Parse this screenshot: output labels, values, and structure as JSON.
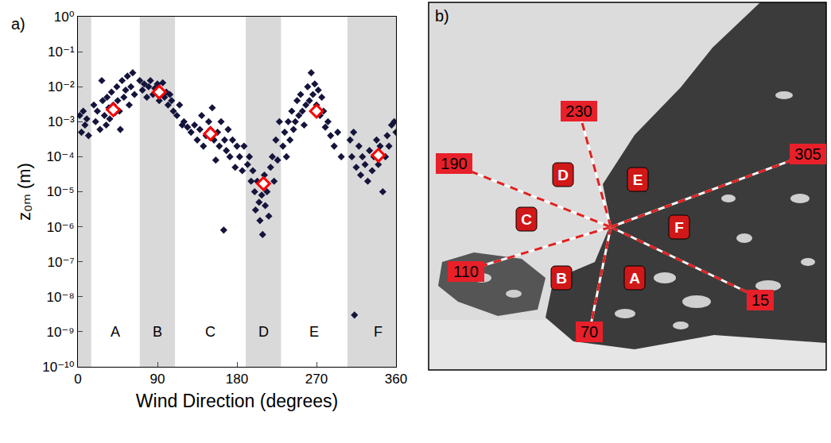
{
  "chart_data": {
    "type": "scatter",
    "panel_label": "a)",
    "x_label": "Wind Direction (degrees)",
    "y_label": "z₀ₘ (m)",
    "log": "y",
    "grid": false,
    "xlim": [
      0,
      360
    ],
    "xticks": [
      0,
      90,
      180,
      270,
      360
    ],
    "ylim": [
      1e-10,
      1
    ],
    "yticks": [
      {
        "value": 1e-10,
        "label": "10⁻¹⁰"
      },
      {
        "value": 1e-09,
        "label": "10⁻⁹"
      },
      {
        "value": 1e-08,
        "label": "10⁻⁸"
      },
      {
        "value": 1e-07,
        "label": "10⁻⁷"
      },
      {
        "value": 1e-06,
        "label": "10⁻⁶"
      },
      {
        "value": 1e-05,
        "label": "10⁻⁵"
      },
      {
        "value": 0.0001,
        "label": "10⁻⁴"
      },
      {
        "value": 0.001,
        "label": "10⁻³"
      },
      {
        "value": 0.01,
        "label": "10⁻²"
      },
      {
        "value": 0.1,
        "label": "10⁻¹"
      },
      {
        "value": 1,
        "label": "10⁰"
      }
    ],
    "sectors": [
      {
        "label": "A",
        "start": 15,
        "end": 70,
        "color": "#ffffff"
      },
      {
        "label": "B",
        "start": 70,
        "end": 110,
        "color": "#d9d9d9"
      },
      {
        "label": "C",
        "start": 110,
        "end": 190,
        "color": "#ffffff"
      },
      {
        "label": "D",
        "start": 190,
        "end": 230,
        "color": "#d9d9d9"
      },
      {
        "label": "E",
        "start": 230,
        "end": 305,
        "color": "#ffffff"
      },
      {
        "label": "F",
        "start": 305,
        "end": 15,
        "color": "#d9d9d9"
      }
    ],
    "series": [
      {
        "color": "#14143c",
        "marker": "diamond",
        "x": [
          2,
          4,
          6,
          8,
          10,
          12,
          18,
          20,
          22,
          25,
          27,
          28,
          30,
          32,
          33,
          35,
          36,
          38,
          40,
          42,
          44,
          45,
          47,
          48,
          50,
          52,
          54,
          56,
          58,
          60,
          62,
          64,
          70,
          73,
          75,
          78,
          80,
          82,
          85,
          87,
          90,
          92,
          94,
          96,
          98,
          100,
          102,
          104,
          106,
          108,
          112,
          115,
          118,
          120,
          124,
          128,
          132,
          135,
          138,
          140,
          142,
          145,
          148,
          150,
          152,
          154,
          156,
          158,
          160,
          162,
          165,
          166,
          168,
          170,
          172,
          175,
          178,
          180,
          183,
          186,
          188,
          192,
          194,
          196,
          198,
          200,
          201,
          203,
          205,
          206,
          208,
          209,
          211,
          212,
          214,
          216,
          218,
          220,
          222,
          224,
          226,
          228,
          232,
          234,
          236,
          238,
          240,
          242,
          244,
          246,
          248,
          250,
          252,
          254,
          256,
          258,
          260,
          262,
          264,
          266,
          268,
          270,
          272,
          274,
          276,
          278,
          280,
          283,
          286,
          290,
          294,
          298,
          308,
          310,
          312,
          313,
          315,
          318,
          320,
          322,
          325,
          328,
          330,
          333,
          335,
          338,
          340,
          342,
          345,
          348,
          350,
          352,
          355,
          358,
          360
        ],
        "values": [
          0.0015,
          0.0005,
          0.002,
          0.0008,
          0.0012,
          0.0004,
          0.003,
          0.001,
          0.002,
          0.0006,
          0.015,
          0.004,
          0.0015,
          0.0008,
          0.005,
          0.0025,
          0.0012,
          0.007,
          0.003,
          0.0018,
          0.01,
          0.004,
          0.002,
          0.0006,
          0.015,
          0.005,
          0.008,
          0.02,
          0.003,
          0.01,
          0.025,
          0.006,
          0.015,
          0.008,
          0.012,
          0.005,
          0.01,
          0.015,
          0.006,
          0.009,
          0.012,
          0.004,
          0.008,
          0.013,
          0.005,
          0.007,
          0.003,
          0.006,
          0.004,
          0.002,
          0.0015,
          0.003,
          0.0008,
          0.001,
          0.0007,
          0.0005,
          0.0008,
          0.0003,
          0.0006,
          0.0015,
          0.0002,
          0.0004,
          0.001,
          0.0006,
          0.0025,
          0.0003,
          8e-05,
          0.0005,
          0.0002,
          0.001,
          8e-07,
          0.0003,
          0.00015,
          0.0006,
          0.0001,
          0.0003,
          5e-05,
          0.0002,
          0.0001,
          4e-05,
          0.0002,
          6e-05,
          0.0001,
          2e-05,
          4e-05,
          1e-05,
          3e-06,
          2e-05,
          5e-06,
          1.5e-06,
          8e-06,
          6e-07,
          3e-05,
          4e-06,
          1e-05,
          2e-06,
          5e-05,
          0.0001,
          2e-05,
          0.0003,
          8e-05,
          0.001,
          0.0002,
          0.0005,
          0.0001,
          0.001,
          0.0003,
          0.002,
          0.0006,
          0.001,
          0.004,
          0.0015,
          0.006,
          0.002,
          0.0008,
          0.003,
          0.01,
          0.004,
          0.025,
          0.006,
          0.012,
          0.003,
          0.008,
          0.0015,
          0.005,
          0.002,
          0.0007,
          0.001,
          0.0004,
          0.0002,
          0.0005,
          0.0001,
          0.0003,
          0.0001,
          0.0005,
          3e-09,
          5e-05,
          0.0002,
          3e-05,
          0.0001,
          6e-05,
          2e-05,
          0.00015,
          4e-05,
          0.0001,
          0.0003,
          6e-05,
          0.0002,
          1e-05,
          0.0001,
          0.0004,
          0.0002,
          0.0008,
          0.001,
          0.0005
        ]
      },
      {
        "color": "#ff0000",
        "marker": "diamond-open",
        "x": [
          40,
          92,
          150,
          210,
          270,
          340
        ],
        "values": [
          0.0022,
          0.007,
          0.00045,
          1.7e-05,
          0.002,
          0.00011
        ]
      }
    ]
  },
  "panel_b": {
    "panel_label": "b)"
  }
}
